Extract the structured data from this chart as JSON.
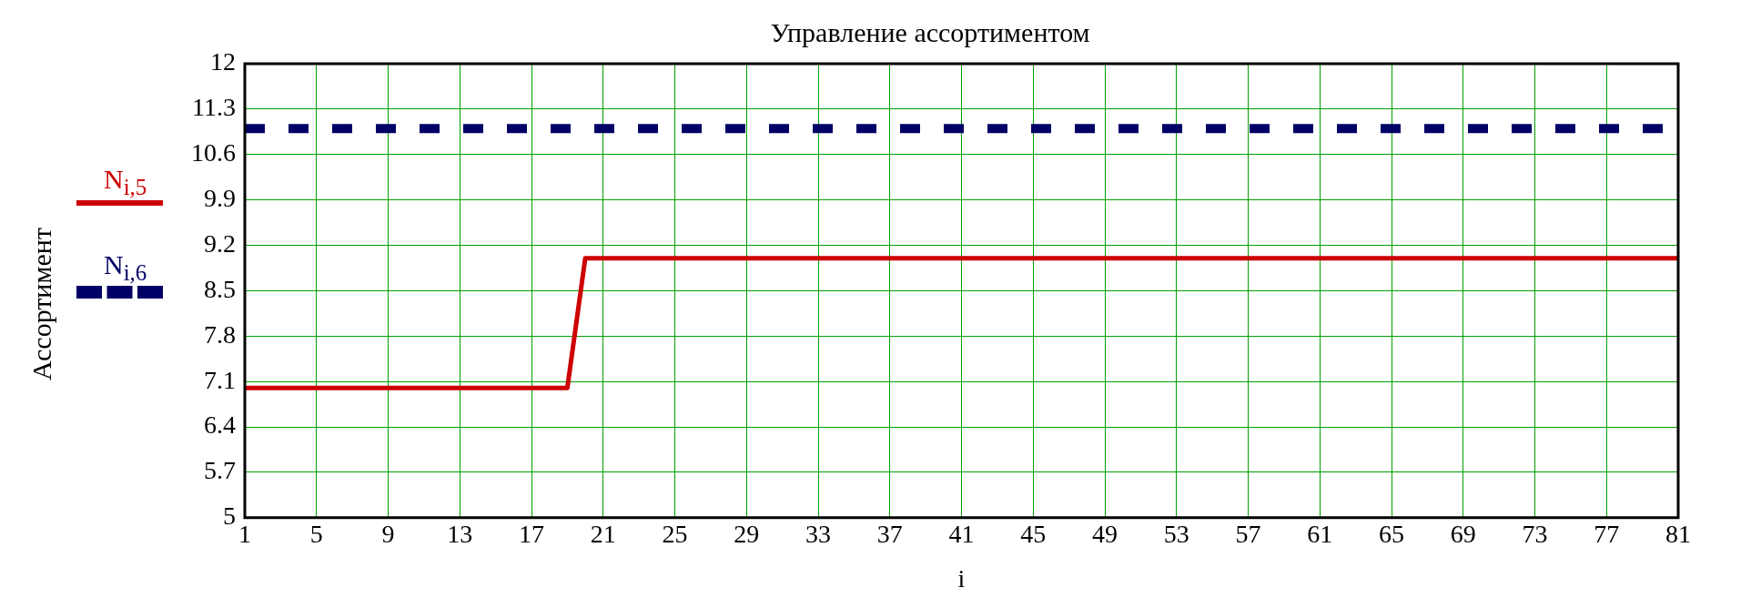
{
  "chart_data": {
    "type": "line",
    "title": "Управление ассортиментом",
    "xlabel": "i",
    "ylabel": "Ассортимент",
    "xlim": [
      1,
      81
    ],
    "xticks": [
      1,
      5,
      9,
      13,
      17,
      21,
      25,
      29,
      33,
      37,
      41,
      45,
      49,
      53,
      57,
      61,
      65,
      69,
      73,
      77,
      81
    ],
    "ylim": [
      5,
      12
    ],
    "yticks": [
      5,
      5.7,
      6.4,
      7.1,
      7.8,
      8.5,
      9.2,
      9.9,
      10.6,
      11.3,
      12
    ],
    "grid": true,
    "legend": "left",
    "marker": "none",
    "series": [
      {
        "name": "N$_{i,5}$",
        "color": "#cc0000",
        "line_style": "solid",
        "x": [
          1,
          19,
          20,
          81
        ],
        "values": [
          7,
          7,
          9,
          9
        ]
      },
      {
        "name": "N$_{i,6}$",
        "color": "#000066",
        "line_style": "dashed",
        "x": [
          1,
          81
        ],
        "values": [
          11,
          11
        ]
      }
    ]
  }
}
